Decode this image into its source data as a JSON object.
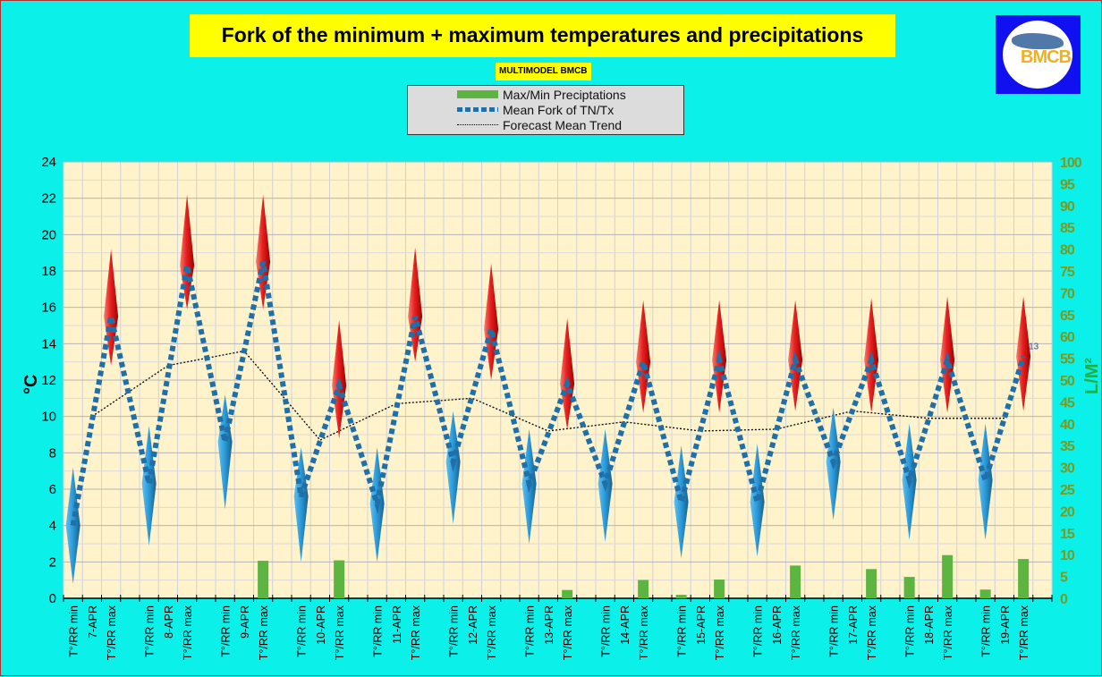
{
  "title": "Fork of the minimum + maximum temperatures and precipitations",
  "subtitle": "MULTIMODEL BMCB",
  "logo_text": "BMCB",
  "legend": [
    {
      "label": "Max/Min Preciptations",
      "color": "#5bb540"
    },
    {
      "label": "Mean Fork of TN/Tx",
      "color": "#1f6fa8"
    },
    {
      "label": "Forecast Mean Trend",
      "color": "#000000"
    }
  ],
  "chart_data": {
    "type": "line",
    "title": "Fork of the minimum + maximum temperatures and precipitations",
    "ylabel": "°C",
    "y2label": "L/M²",
    "ylim": [
      0,
      24
    ],
    "y2lim": [
      0,
      100
    ],
    "yticks": [
      "0",
      "2",
      "4",
      "6",
      "8",
      "10",
      "12",
      "14",
      "16",
      "18",
      "20",
      "22",
      "24"
    ],
    "y2ticks": [
      "0",
      "5",
      "10",
      "15",
      "20",
      "25",
      "30",
      "35",
      "40",
      "45",
      "50",
      "55",
      "60",
      "65",
      "70",
      "75",
      "80",
      "85",
      "90",
      "95",
      "100"
    ],
    "min_label": "T°/RR min",
    "max_label": "T°/RR max",
    "last_value_label": "13",
    "days": [
      "7-APR",
      "8-APR",
      "9-APR",
      "10-APR",
      "11-APR",
      "12-APR",
      "13-APR",
      "14-APR",
      "15-APR",
      "16-APR",
      "17-APR",
      "18-APR",
      "19-APR"
    ],
    "tmin_mean": [
      4.0,
      6.3,
      8.6,
      5.6,
      5.2,
      7.5,
      6.3,
      6.3,
      5.3,
      5.3,
      7.5,
      6.5,
      6.5
    ],
    "tmin_low": [
      0.8,
      2.9,
      4.9,
      2.0,
      2.0,
      4.1,
      3.0,
      3.1,
      2.2,
      2.3,
      4.3,
      3.2,
      3.2
    ],
    "tmin_high": [
      7.2,
      9.5,
      11.2,
      8.3,
      8.3,
      10.3,
      9.3,
      9.3,
      8.4,
      8.5,
      10.5,
      9.6,
      9.6
    ],
    "tmax_mean": [
      15.5,
      18.3,
      18.5,
      11.7,
      15.5,
      14.8,
      11.8,
      13.0,
      13.1,
      13.1,
      13.1,
      13.1,
      13.3
    ],
    "tmax_low": [
      12.8,
      15.9,
      15.9,
      8.8,
      13.0,
      12.0,
      9.3,
      10.2,
      10.2,
      10.3,
      10.2,
      10.2,
      10.3
    ],
    "tmax_high": [
      19.2,
      22.2,
      22.2,
      15.3,
      19.3,
      18.4,
      15.4,
      16.4,
      16.4,
      16.4,
      16.5,
      16.6,
      16.6
    ],
    "trend": [
      10.0,
      12.8,
      13.6,
      8.7,
      10.7,
      11.0,
      9.2,
      9.7,
      9.2,
      9.3,
      10.3,
      9.9,
      9.9
    ],
    "precip_min": [
      0,
      0,
      0,
      0,
      0,
      0,
      0,
      0,
      0.8,
      0,
      0,
      4.9,
      2.0
    ],
    "precip_max": [
      0,
      0,
      8.6,
      8.7,
      0,
      0,
      1.9,
      4.2,
      4.3,
      7.5,
      6.7,
      9.9,
      9.0
    ],
    "grid": true,
    "legend_position": "top-center"
  }
}
